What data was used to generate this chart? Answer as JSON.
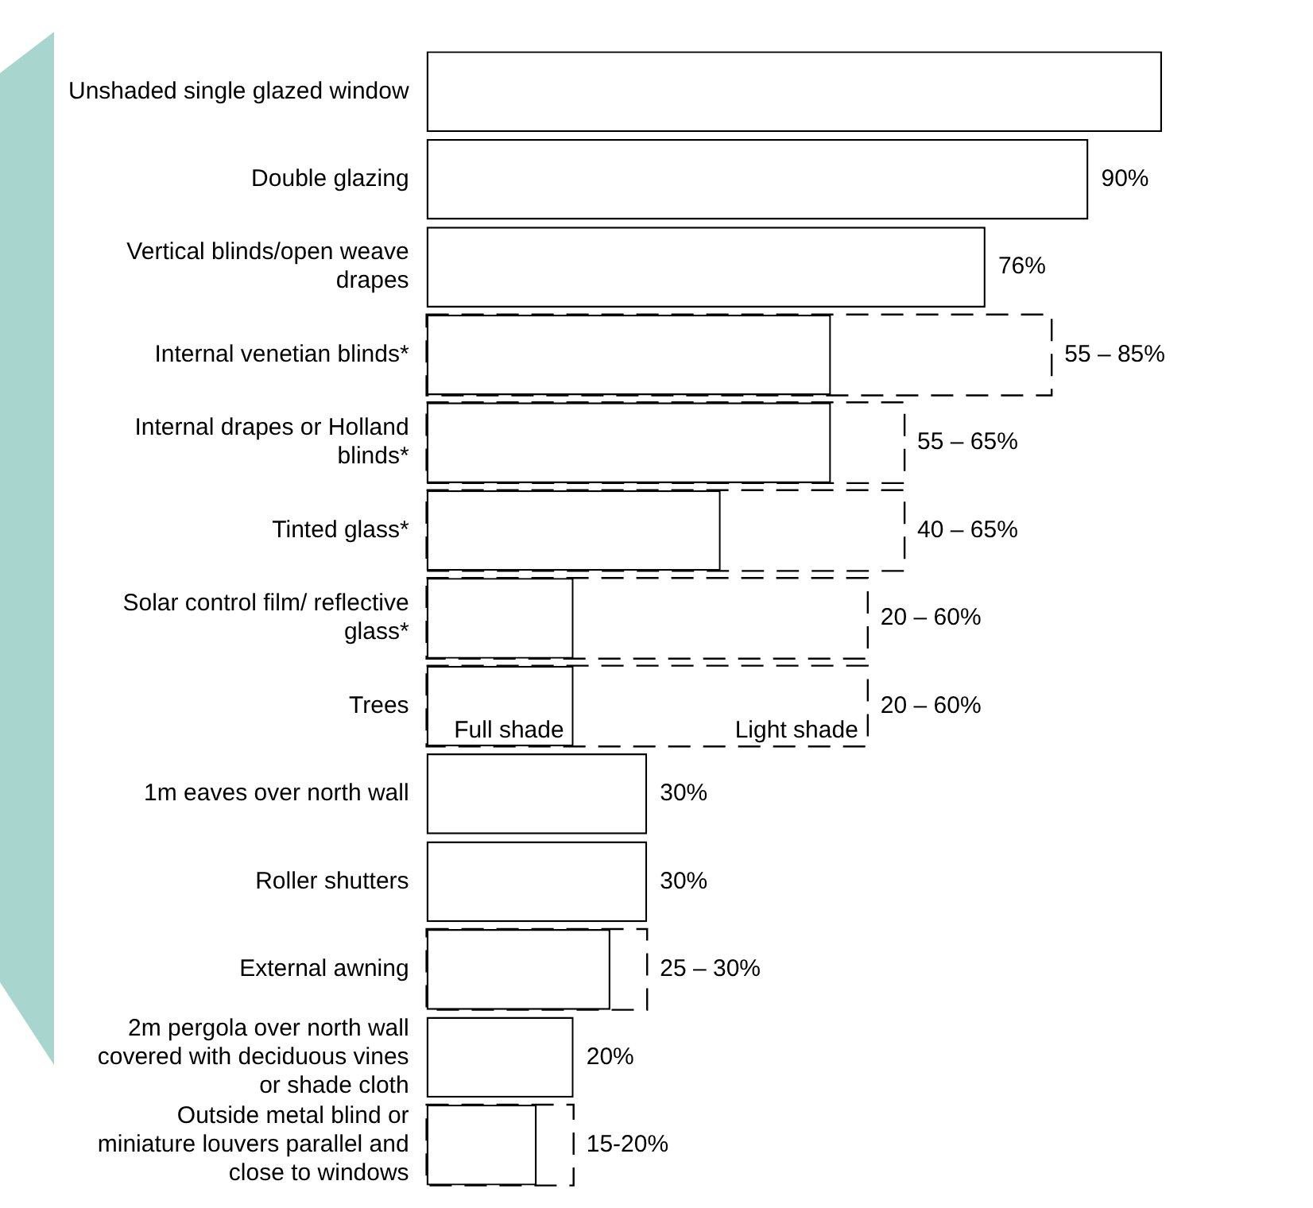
{
  "chart_data": {
    "type": "bar",
    "orientation": "horizontal",
    "tick_labels": "y",
    "grid": false,
    "legend": false,
    "categories": [
      "Unshaded single glazed window",
      "Double glazing",
      "Vertical blinds/open weave drapes",
      "Internal venetian blinds*",
      "Internal drapes or Holland blinds*",
      "Tinted glass*",
      "Solar control film/ reflective glass*",
      "Trees",
      "1m eaves over north wall",
      "Roller shutters",
      "External awning",
      "2m pergola over north wall covered with deciduous vines or shade cloth",
      "Outside metal blind or miniature louvers parallel and close to windows"
    ],
    "series": [
      {
        "color": "#ffffff",
        "line_style": "dashed",
        "values": [
          null,
          null,
          null,
          85,
          65,
          65,
          60,
          60,
          null,
          null,
          30,
          null,
          20
        ]
      },
      {
        "color": "#ffffff",
        "line_style": "solid",
        "values": [
          100,
          90,
          76,
          55,
          55,
          40,
          20,
          20,
          30,
          30,
          25,
          20,
          15
        ],
        "value_labels": [
          null,
          "90%",
          "76%",
          null,
          null,
          null,
          null,
          null,
          "30%",
          "30%",
          null,
          "20%",
          null
        ]
      }
    ],
    "annotations": [
      {
        "text": "55 – 85%",
        "x": 85,
        "y": "Internal venetian blinds*"
      },
      {
        "text": "55 – 65%",
        "x": 65,
        "y": "Internal drapes or Holland blinds*"
      },
      {
        "text": "40 – 65%",
        "x": 65,
        "y": "Tinted glass*"
      },
      {
        "text": "20 – 60%",
        "x": 60,
        "y": "Solar control film/ reflective glass*"
      },
      {
        "text": "20 – 60%",
        "x": 60,
        "y": "Trees"
      },
      {
        "text": "25 – 30%",
        "x": 30,
        "y": "External awning"
      },
      {
        "text": "15-20%",
        "x": 20,
        "y": "Outside metal blind or miniature louvers parallel and close to windows"
      },
      {
        "text": "Full shade",
        "x": 20,
        "y": "Trees"
      },
      {
        "text": "Light shade",
        "x": 60,
        "y": "Trees"
      }
    ]
  }
}
